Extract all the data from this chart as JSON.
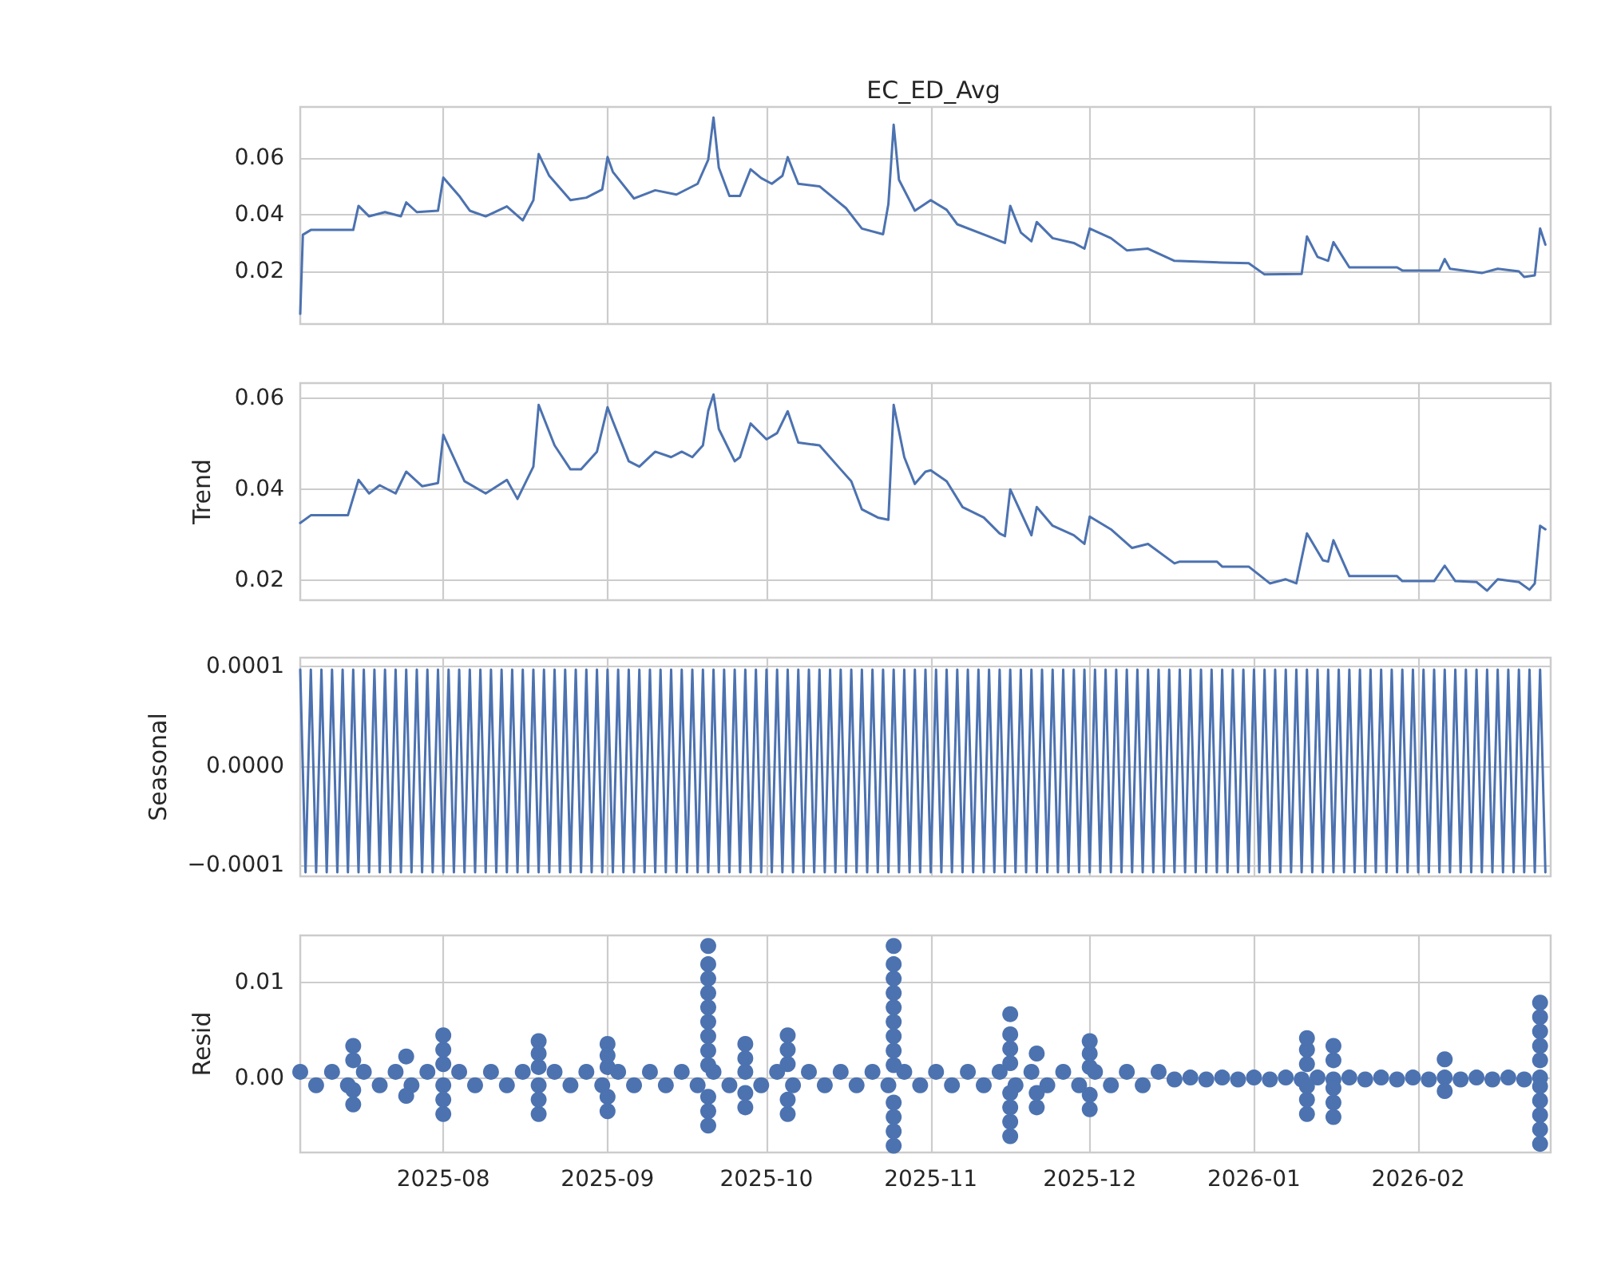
{
  "chart_data": [
    {
      "type": "line",
      "title": "EC_ED_Avg",
      "xlim": [
        "2025-07-05",
        "2026-02-26"
      ],
      "xticks": [
        "2025-08",
        "2025-09",
        "2025-10",
        "2025-11",
        "2025-12",
        "2026-01",
        "2026-02"
      ],
      "ylim": [
        0.0014,
        0.078
      ],
      "yticks": [
        0.02,
        0.04,
        0.06
      ],
      "tick_labels": "y",
      "grid": true,
      "marker": "none",
      "line_style": "solid",
      "series": [
        {
          "color": "#4c72b0",
          "x": [
            "2025-07-05",
            "2025-07-05T12:00",
            "2025-07-07",
            "2025-07-15",
            "2025-07-16",
            "2025-07-18",
            "2025-07-21",
            "2025-07-24",
            "2025-07-25",
            "2025-07-27",
            "2025-07-31",
            "2025-08-01",
            "2025-08-04",
            "2025-08-06",
            "2025-08-09",
            "2025-08-13",
            "2025-08-16",
            "2025-08-18",
            "2025-08-19",
            "2025-08-21",
            "2025-08-25",
            "2025-08-28",
            "2025-08-31",
            "2025-09-01",
            "2025-09-02",
            "2025-09-06",
            "2025-09-10",
            "2025-09-14",
            "2025-09-18",
            "2025-09-20",
            "2025-09-21",
            "2025-09-22",
            "2025-09-24",
            "2025-09-26",
            "2025-09-28",
            "2025-09-30",
            "2025-10-02",
            "2025-10-04",
            "2025-10-05",
            "2025-10-07",
            "2025-10-11",
            "2025-10-16",
            "2025-10-19",
            "2025-10-23",
            "2025-10-24",
            "2025-10-25",
            "2025-10-26",
            "2025-10-29",
            "2025-11-01",
            "2025-11-04",
            "2025-11-06",
            "2025-11-12",
            "2025-11-15",
            "2025-11-16",
            "2025-11-18",
            "2025-11-20",
            "2025-11-21",
            "2025-11-24",
            "2025-11-28",
            "2025-11-30",
            "2025-12-01",
            "2025-12-05",
            "2025-12-08",
            "2025-12-12",
            "2025-12-17",
            "2025-12-26",
            "2025-12-31",
            "2026-01-03",
            "2026-01-10",
            "2026-01-11",
            "2026-01-13",
            "2026-01-15",
            "2026-01-16",
            "2026-01-19",
            "2026-01-28",
            "2026-01-29",
            "2026-02-05",
            "2026-02-06",
            "2026-02-07",
            "2026-02-13",
            "2026-02-16",
            "2026-02-20",
            "2026-02-21",
            "2026-02-23",
            "2026-02-24",
            "2026-02-25"
          ],
          "values": [
            0.005,
            0.0329,
            0.0346,
            0.0346,
            0.0431,
            0.0394,
            0.0409,
            0.0394,
            0.0443,
            0.0409,
            0.0414,
            0.0531,
            0.0466,
            0.0414,
            0.0394,
            0.0429,
            0.038,
            0.0451,
            0.0614,
            0.0537,
            0.0451,
            0.046,
            0.0489,
            0.0603,
            0.0551,
            0.0457,
            0.0486,
            0.0471,
            0.0509,
            0.0594,
            0.0743,
            0.0566,
            0.0466,
            0.0466,
            0.056,
            0.0529,
            0.0509,
            0.0537,
            0.0603,
            0.0509,
            0.05,
            0.0423,
            0.0351,
            0.0331,
            0.0437,
            0.0717,
            0.0523,
            0.0414,
            0.0451,
            0.0417,
            0.0366,
            0.0323,
            0.03,
            0.0431,
            0.0337,
            0.0306,
            0.0374,
            0.0317,
            0.03,
            0.028,
            0.0351,
            0.0317,
            0.0274,
            0.028,
            0.0237,
            0.0231,
            0.0229,
            0.0189,
            0.0191,
            0.0323,
            0.0251,
            0.0237,
            0.0303,
            0.0214,
            0.0214,
            0.0203,
            0.0203,
            0.0243,
            0.0209,
            0.0194,
            0.0209,
            0.02,
            0.018,
            0.0186,
            0.0351,
            0.0294
          ]
        }
      ]
    },
    {
      "type": "line",
      "ylabel": "Trend",
      "xlim": [
        "2025-07-05",
        "2026-02-26"
      ],
      "xticks": [
        "2025-08",
        "2025-09",
        "2025-10",
        "2025-11",
        "2025-12",
        "2026-01",
        "2026-02"
      ],
      "ylim": [
        0.0156,
        0.0634
      ],
      "yticks": [
        0.02,
        0.04,
        0.06
      ],
      "tick_labels": "y",
      "grid": true,
      "marker": "none",
      "line_style": "solid",
      "series": [
        {
          "color": "#4c72b0",
          "x": [
            "2025-07-05",
            "2025-07-07",
            "2025-07-14",
            "2025-07-16",
            "2025-07-18",
            "2025-07-20",
            "2025-07-23",
            "2025-07-25",
            "2025-07-28",
            "2025-07-31",
            "2025-08-01",
            "2025-08-05",
            "2025-08-09",
            "2025-08-13",
            "2025-08-15",
            "2025-08-18",
            "2025-08-19",
            "2025-08-22",
            "2025-08-25",
            "2025-08-27",
            "2025-08-30",
            "2025-09-01",
            "2025-09-02",
            "2025-09-05",
            "2025-09-07",
            "2025-09-10",
            "2025-09-13",
            "2025-09-15",
            "2025-09-17",
            "2025-09-19",
            "2025-09-20",
            "2025-09-21",
            "2025-09-22",
            "2025-09-25",
            "2025-09-26",
            "2025-09-28",
            "2025-10-01",
            "2025-10-03",
            "2025-10-05",
            "2025-10-07",
            "2025-10-11",
            "2025-10-15",
            "2025-10-17",
            "2025-10-19",
            "2025-10-22",
            "2025-10-24",
            "2025-10-25",
            "2025-10-27",
            "2025-10-29",
            "2025-10-31",
            "2025-11-01",
            "2025-11-04",
            "2025-11-07",
            "2025-11-11",
            "2025-11-14",
            "2025-11-15",
            "2025-11-16",
            "2025-11-20",
            "2025-11-21",
            "2025-11-24",
            "2025-11-28",
            "2025-11-30",
            "2025-12-01",
            "2025-12-05",
            "2025-12-09",
            "2025-12-12",
            "2025-12-17",
            "2025-12-18",
            "2025-12-25",
            "2025-12-26",
            "2025-12-31",
            "2026-01-04",
            "2026-01-07",
            "2026-01-09",
            "2026-01-11",
            "2026-01-14",
            "2026-01-15",
            "2026-01-16",
            "2026-01-19",
            "2026-01-28",
            "2026-01-29",
            "2026-02-04",
            "2026-02-06",
            "2026-02-08",
            "2026-02-12",
            "2026-02-14",
            "2026-02-16",
            "2026-02-20",
            "2026-02-22",
            "2026-02-23",
            "2026-02-24",
            "2026-02-25"
          ],
          "values": [
            0.0326,
            0.0343,
            0.0343,
            0.0421,
            0.0391,
            0.0409,
            0.0391,
            0.0439,
            0.0407,
            0.0414,
            0.052,
            0.0418,
            0.0391,
            0.0421,
            0.0379,
            0.045,
            0.0586,
            0.0497,
            0.0444,
            0.0444,
            0.0483,
            0.0581,
            0.055,
            0.0462,
            0.045,
            0.0483,
            0.0471,
            0.0483,
            0.0471,
            0.0497,
            0.0573,
            0.0609,
            0.0533,
            0.0462,
            0.0471,
            0.0545,
            0.051,
            0.0524,
            0.0572,
            0.0503,
            0.0497,
            0.0444,
            0.0418,
            0.0356,
            0.0338,
            0.0333,
            0.0586,
            0.0471,
            0.0412,
            0.0439,
            0.0442,
            0.0418,
            0.0361,
            0.0338,
            0.0303,
            0.0297,
            0.04,
            0.0299,
            0.0361,
            0.032,
            0.0299,
            0.028,
            0.034,
            0.0312,
            0.0271,
            0.028,
            0.0237,
            0.0241,
            0.0241,
            0.023,
            0.023,
            0.0193,
            0.0202,
            0.0193,
            0.0303,
            0.0244,
            0.0241,
            0.0288,
            0.0209,
            0.0209,
            0.0198,
            0.0198,
            0.0232,
            0.0198,
            0.0196,
            0.0177,
            0.0202,
            0.0196,
            0.0179,
            0.0193,
            0.032,
            0.0312
          ]
        }
      ]
    },
    {
      "type": "line",
      "ylabel": "Seasonal",
      "xlim": [
        "2025-07-05",
        "2026-02-26"
      ],
      "xticks": [
        "2025-08",
        "2025-09",
        "2025-10",
        "2025-11",
        "2025-12",
        "2026-01",
        "2026-02"
      ],
      "ylim": [
        -0.000111,
        0.000109
      ],
      "yticks": [
        {
          "value": -0.0001,
          "label": "−0.0001"
        },
        {
          "value": 0,
          "label": "0.0000"
        },
        {
          "value": 0.0001,
          "label": "0.0001"
        }
      ],
      "tick_labels": "y",
      "grid": true,
      "marker": "none",
      "line_style": "solid",
      "series": [
        {
          "color": "#4c72b0",
          "x": [
            "2025-07-05",
            "2025-07-06",
            "2025-07-07",
            "2025-07-08",
            "2025-07-09",
            "2025-07-10",
            "2025-07-11",
            "2025-07-12",
            "2025-07-13",
            "2025-07-14",
            "2025-07-15",
            "2025-07-16",
            "2025-07-17",
            "2025-07-18",
            "2025-07-19",
            "2025-07-20",
            "2025-07-21",
            "2025-07-22",
            "2025-07-23",
            "2025-07-24",
            "2025-07-25",
            "2025-07-26",
            "2025-07-27",
            "2025-07-28",
            "2025-07-29",
            "2025-07-30",
            "2025-07-31",
            "2025-08-01",
            "2025-08-02",
            "2025-08-03",
            "2025-08-04",
            "2025-08-05",
            "2025-08-06",
            "2025-08-07",
            "2025-08-08",
            "2025-08-09",
            "2025-08-10",
            "2025-08-11",
            "2025-08-12",
            "2025-08-13",
            "2025-08-14",
            "2025-08-15",
            "2025-08-16",
            "2025-08-17",
            "2025-08-18",
            "2025-08-19",
            "2025-08-20",
            "2025-08-21",
            "2025-08-22",
            "2025-08-23",
            "2025-08-24",
            "2025-08-25",
            "2025-08-26",
            "2025-08-27",
            "2025-08-28",
            "2025-08-29",
            "2025-08-30",
            "2025-08-31",
            "2025-09-01",
            "2025-09-02",
            "2025-09-03",
            "2025-09-04",
            "2025-09-05",
            "2025-09-06",
            "2025-09-07",
            "2025-09-08",
            "2025-09-09",
            "2025-09-10",
            "2025-09-11",
            "2025-09-12",
            "2025-09-13",
            "2025-09-14",
            "2025-09-15",
            "2025-09-16",
            "2025-09-17",
            "2025-09-18",
            "2025-09-19",
            "2025-09-20",
            "2025-09-21",
            "2025-09-22",
            "2025-09-23",
            "2025-09-24",
            "2025-09-25",
            "2025-09-26",
            "2025-09-27",
            "2025-09-28",
            "2025-09-29",
            "2025-09-30",
            "2025-10-01",
            "2025-10-02",
            "2025-10-03",
            "2025-10-04",
            "2025-10-05",
            "2025-10-06",
            "2025-10-07",
            "2025-10-08",
            "2025-10-09",
            "2025-10-10",
            "2025-10-11",
            "2025-10-12",
            "2025-10-13",
            "2025-10-14",
            "2025-10-15",
            "2025-10-16",
            "2025-10-17",
            "2025-10-18",
            "2025-10-19",
            "2025-10-20",
            "2025-10-21",
            "2025-10-22",
            "2025-10-23",
            "2025-10-24",
            "2025-10-25",
            "2025-10-26",
            "2025-10-27",
            "2025-10-28",
            "2025-10-29",
            "2025-10-30",
            "2025-10-31",
            "2025-11-01",
            "2025-11-02",
            "2025-11-03",
            "2025-11-04",
            "2025-11-05",
            "2025-11-06",
            "2025-11-07",
            "2025-11-08",
            "2025-11-09",
            "2025-11-10",
            "2025-11-11",
            "2025-11-12",
            "2025-11-13",
            "2025-11-14",
            "2025-11-15",
            "2025-11-16",
            "2025-11-17",
            "2025-11-18",
            "2025-11-19",
            "2025-11-20",
            "2025-11-21",
            "2025-11-22",
            "2025-11-23",
            "2025-11-24",
            "2025-11-25",
            "2025-11-26",
            "2025-11-27",
            "2025-11-28",
            "2025-11-29",
            "2025-11-30",
            "2025-12-01",
            "2025-12-02",
            "2025-12-03",
            "2025-12-04",
            "2025-12-05",
            "2025-12-06",
            "2025-12-07",
            "2025-12-08",
            "2025-12-09",
            "2025-12-10",
            "2025-12-11",
            "2025-12-12",
            "2025-12-13",
            "2025-12-14",
            "2025-12-15",
            "2025-12-16",
            "2025-12-17",
            "2025-12-18",
            "2025-12-19",
            "2025-12-20",
            "2025-12-21",
            "2025-12-22",
            "2025-12-23",
            "2025-12-24",
            "2025-12-25",
            "2025-12-26",
            "2025-12-27",
            "2025-12-28",
            "2025-12-29",
            "2025-12-30",
            "2025-12-31",
            "2026-01-01",
            "2026-01-02",
            "2026-01-03",
            "2026-01-04",
            "2026-01-05",
            "2026-01-06",
            "2026-01-07",
            "2026-01-08",
            "2026-01-09",
            "2026-01-10",
            "2026-01-11",
            "2026-01-12",
            "2026-01-13",
            "2026-01-14",
            "2026-01-15",
            "2026-01-16",
            "2026-01-17",
            "2026-01-18",
            "2026-01-19",
            "2026-01-20",
            "2026-01-21",
            "2026-01-22",
            "2026-01-23",
            "2026-01-24",
            "2026-01-25",
            "2026-01-26",
            "2026-01-27",
            "2026-01-28",
            "2026-01-29",
            "2026-01-30",
            "2026-01-31",
            "2026-02-01",
            "2026-02-02",
            "2026-02-03",
            "2026-02-04",
            "2026-02-05",
            "2026-02-06",
            "2026-02-07",
            "2026-02-08",
            "2026-02-09",
            "2026-02-10",
            "2026-02-11",
            "2026-02-12",
            "2026-02-13",
            "2026-02-14",
            "2026-02-15",
            "2026-02-16",
            "2026-02-17",
            "2026-02-18",
            "2026-02-19",
            "2026-02-20",
            "2026-02-21",
            "2026-02-22",
            "2026-02-23",
            "2026-02-24",
            "2026-02-25"
          ],
          "values": [
            9.7e-05,
            -0.000107,
            9.7e-05,
            -0.000107,
            9.7e-05,
            -0.000107,
            9.7e-05,
            -0.000107,
            9.7e-05,
            -0.000107,
            9.7e-05,
            -0.000107,
            9.7e-05,
            -0.000107,
            9.7e-05,
            -0.000107,
            9.7e-05,
            -0.000107,
            9.7e-05,
            -0.000107,
            9.7e-05,
            -0.000107,
            9.7e-05,
            -0.000107,
            9.7e-05,
            -0.000107,
            9.7e-05,
            -0.000107,
            9.7e-05,
            -0.000107,
            9.7e-05,
            -0.000107,
            9.7e-05,
            -0.000107,
            9.7e-05,
            -0.000107,
            9.7e-05,
            -0.000107,
            9.7e-05,
            -0.000107,
            9.7e-05,
            -0.000107,
            9.7e-05,
            -0.000107,
            9.7e-05,
            -0.000107,
            9.7e-05,
            -0.000107,
            9.7e-05,
            -0.000107,
            9.7e-05,
            -0.000107,
            9.7e-05,
            -0.000107,
            9.7e-05,
            -0.000107,
            9.7e-05,
            -0.000107,
            9.7e-05,
            -0.000107,
            9.7e-05,
            -0.000107,
            9.7e-05,
            -0.000107,
            9.7e-05,
            -0.000107,
            9.7e-05,
            -0.000107,
            9.7e-05,
            -0.000107,
            9.7e-05,
            -0.000107,
            9.7e-05,
            -0.000107,
            9.7e-05,
            -0.000107,
            9.7e-05,
            -0.000107,
            9.7e-05,
            -0.000107,
            9.7e-05,
            -0.000107,
            9.7e-05,
            -0.000107,
            9.7e-05,
            -0.000107,
            9.7e-05,
            -0.000107,
            9.7e-05,
            -0.000107,
            9.7e-05,
            -0.000107,
            9.7e-05,
            -0.000107,
            9.7e-05,
            -0.000107,
            9.7e-05,
            -0.000107,
            9.7e-05,
            -0.000107,
            9.7e-05,
            -0.000107,
            9.7e-05,
            -0.000107,
            9.7e-05,
            -0.000107,
            9.7e-05,
            -0.000107,
            9.7e-05,
            -0.000107,
            9.7e-05,
            -0.000107,
            9.7e-05,
            -0.000107,
            9.7e-05,
            -0.000107,
            9.7e-05,
            -0.000107,
            9.7e-05,
            -0.000107,
            9.7e-05,
            -0.000107,
            9.7e-05,
            -0.000107,
            9.7e-05,
            -0.000107,
            9.7e-05,
            -0.000107,
            9.7e-05,
            -0.000107,
            9.7e-05,
            -0.000107,
            9.7e-05,
            -0.000107,
            9.7e-05,
            -0.000107,
            9.7e-05,
            -0.000107,
            9.7e-05,
            -0.000107,
            9.7e-05,
            -0.000107,
            9.7e-05,
            -0.000107,
            9.7e-05,
            -0.000107,
            9.7e-05,
            -0.000107,
            9.7e-05,
            -0.000107,
            9.7e-05,
            -0.000107,
            9.7e-05,
            -0.000107,
            9.7e-05,
            -0.000107,
            9.7e-05,
            -0.000107,
            9.7e-05,
            -0.000107,
            9.7e-05,
            -0.000107,
            9.7e-05,
            -0.000107,
            9.7e-05,
            -0.000107,
            9.7e-05,
            -0.000107,
            9.7e-05,
            -0.000107,
            9.7e-05,
            -0.000107,
            9.7e-05,
            -0.000107,
            9.7e-05,
            -0.000107,
            9.7e-05,
            -0.000107,
            9.7e-05,
            -0.000107,
            9.7e-05,
            -0.000107,
            9.7e-05,
            -0.000107,
            9.7e-05,
            -0.000107,
            9.7e-05,
            -0.000107,
            9.7e-05,
            -0.000107,
            9.7e-05,
            -0.000107,
            9.7e-05,
            -0.000107,
            9.7e-05,
            -0.000107,
            9.7e-05,
            -0.000107,
            9.7e-05,
            -0.000107,
            9.7e-05,
            -0.000107,
            9.7e-05,
            -0.000107,
            9.7e-05,
            -0.000107,
            9.7e-05,
            -0.000107,
            9.7e-05,
            -0.000107,
            9.7e-05,
            -0.000107,
            9.7e-05,
            -0.000107,
            9.7e-05,
            -0.000107,
            9.7e-05,
            -0.000107,
            9.7e-05,
            -0.000107,
            9.7e-05,
            -0.000107,
            9.7e-05,
            -0.000107,
            9.7e-05,
            -0.000107,
            9.7e-05,
            -0.000107,
            9.7e-05,
            -0.000107,
            9.7e-05,
            -0.000107,
            9.7e-05,
            -0.000107,
            9.7e-05,
            -0.000107
          ]
        }
      ]
    },
    {
      "type": "scatter",
      "ylabel": "Resid",
      "xlim": [
        "2025-07-05",
        "2026-02-26"
      ],
      "xticks": [
        "2025-08",
        "2025-09",
        "2025-10",
        "2025-11",
        "2025-12",
        "2026-01",
        "2026-02"
      ],
      "ylim": [
        -0.0077,
        0.0149
      ],
      "yticks": [
        {
          "value": 0,
          "label": "0.00"
        },
        0.01
      ],
      "grid": true,
      "marker": "circle",
      "series": [
        {
          "color": "#4c72b0",
          "x": [
            "2025-07-05",
            "2025-07-08",
            "2025-07-11",
            "2025-07-14",
            "2025-07-17",
            "2025-07-20",
            "2025-07-23",
            "2025-07-26",
            "2025-07-29",
            "2025-08-01",
            "2025-08-04",
            "2025-08-07",
            "2025-08-10",
            "2025-08-13",
            "2025-08-16",
            "2025-08-19",
            "2025-08-22",
            "2025-08-25",
            "2025-08-28",
            "2025-08-31",
            "2025-09-03",
            "2025-09-06",
            "2025-09-09",
            "2025-09-12",
            "2025-09-15",
            "2025-09-18",
            "2025-09-21",
            "2025-09-24",
            "2025-09-27",
            "2025-09-30",
            "2025-10-03",
            "2025-10-06",
            "2025-10-09",
            "2025-10-12",
            "2025-10-15",
            "2025-10-18",
            "2025-10-21",
            "2025-10-24",
            "2025-10-27",
            "2025-10-30",
            "2025-11-02",
            "2025-11-05",
            "2025-11-08",
            "2025-11-11",
            "2025-11-14",
            "2025-11-17",
            "2025-11-20",
            "2025-11-23",
            "2025-11-26",
            "2025-11-29",
            "2025-12-02",
            "2025-12-05",
            "2025-12-08",
            "2025-12-11",
            "2025-12-14",
            "2025-12-17",
            "2025-12-20",
            "2025-12-23",
            "2025-12-26",
            "2025-12-29",
            "2026-01-01",
            "2026-01-04",
            "2026-01-07",
            "2026-01-10",
            "2026-01-13",
            "2026-01-16",
            "2026-01-19",
            "2026-01-22",
            "2026-01-25",
            "2026-01-28",
            "2026-01-31",
            "2026-02-03",
            "2026-02-06",
            "2026-02-09",
            "2026-02-12",
            "2026-02-15",
            "2026-02-18",
            "2026-02-21",
            "2026-02-24"
          ],
          "values": [
            0.0007,
            -0.0007,
            0.0007,
            -0.0007,
            0.0007,
            -0.0007,
            0.0007,
            -0.0007,
            0.0007,
            -0.0007,
            0.0007,
            -0.0007,
            0.0007,
            -0.0007,
            0.0007,
            -0.0007,
            0.0007,
            -0.0007,
            0.0007,
            -0.0007,
            0.0007,
            -0.0007,
            0.0007,
            -0.0007,
            0.0007,
            -0.0007,
            0.0007,
            -0.0007,
            0.0007,
            -0.0007,
            0.0007,
            -0.0007,
            0.0007,
            -0.0007,
            0.0007,
            -0.0007,
            0.0007,
            -0.0007,
            0.0007,
            -0.0007,
            0.0007,
            -0.0007,
            0.0007,
            -0.0007,
            0.0007,
            -0.0007,
            0.0007,
            -0.0007,
            0.0007,
            -0.0007,
            0.0007,
            -0.0007,
            0.0007,
            -0.0007,
            0.0007,
            -0.0001,
            0.0001,
            -0.0001,
            0.0001,
            -0.0001,
            0.0001,
            -0.0001,
            0.0001,
            -0.0001,
            0.0001,
            -0.0001,
            0.0001,
            -0.0001,
            0.0001,
            -0.0001,
            0.0001,
            -0.0001,
            0.0001,
            -0.0001,
            0.0001,
            -0.0001,
            0.0001,
            -0.0001,
            0.0001
          ]
        },
        {
          "color": "#4c72b0",
          "x": [
            "2025-07-15",
            "2025-07-15",
            "2025-07-15",
            "2025-07-15"
          ],
          "values": [
            -0.0027,
            -0.0012,
            0.0019,
            0.0034
          ]
        },
        {
          "color": "#4c72b0",
          "x": [
            "2025-07-25",
            "2025-07-25"
          ],
          "values": [
            -0.0018,
            0.0023
          ]
        },
        {
          "color": "#4c72b0",
          "x": [
            "2025-08-01",
            "2025-08-01",
            "2025-08-01",
            "2025-08-01",
            "2025-08-01"
          ],
          "values": [
            -0.0037,
            -0.0022,
            0.0015,
            0.003,
            0.0045
          ]
        },
        {
          "color": "#4c72b0",
          "x": [
            "2025-08-19",
            "2025-08-19",
            "2025-08-19",
            "2025-08-19",
            "2025-08-19"
          ],
          "values": [
            -0.0037,
            -0.0022,
            0.0012,
            0.0026,
            0.0039
          ]
        },
        {
          "color": "#4c72b0",
          "x": [
            "2025-09-01",
            "2025-09-01",
            "2025-09-01",
            "2025-09-01",
            "2025-09-01"
          ],
          "values": [
            -0.0034,
            -0.0019,
            0.0012,
            0.0024,
            0.0036
          ]
        },
        {
          "color": "#4c72b0",
          "x": [
            "2025-09-20",
            "2025-09-20",
            "2025-09-20",
            "2025-09-20",
            "2025-09-20",
            "2025-09-20",
            "2025-09-20",
            "2025-09-20",
            "2025-09-20",
            "2025-09-20",
            "2025-09-20",
            "2025-09-20"
          ],
          "values": [
            -0.0049,
            -0.0034,
            -0.0019,
            0.0014,
            0.0029,
            0.0044,
            0.0059,
            0.0074,
            0.0089,
            0.0104,
            0.0119,
            0.0138
          ]
        },
        {
          "color": "#4c72b0",
          "x": [
            "2025-09-27",
            "2025-09-27",
            "2025-09-27",
            "2025-09-27"
          ],
          "values": [
            -0.003,
            -0.0015,
            0.0021,
            0.0036
          ]
        },
        {
          "color": "#4c72b0",
          "x": [
            "2025-10-05",
            "2025-10-05",
            "2025-10-05",
            "2025-10-05",
            "2025-10-05"
          ],
          "values": [
            -0.0037,
            -0.0022,
            0.0015,
            0.003,
            0.0045
          ]
        },
        {
          "color": "#4c72b0",
          "x": [
            "2025-10-25",
            "2025-10-25",
            "2025-10-25",
            "2025-10-25",
            "2025-10-25",
            "2025-10-25",
            "2025-10-25",
            "2025-10-25",
            "2025-10-25",
            "2025-10-25",
            "2025-10-25",
            "2025-10-25",
            "2025-10-25"
          ],
          "values": [
            -0.007,
            -0.0055,
            -0.004,
            -0.0025,
            0.0014,
            0.0029,
            0.0044,
            0.0059,
            0.0074,
            0.0089,
            0.0104,
            0.0119,
            0.0138
          ]
        },
        {
          "color": "#4c72b0",
          "x": [
            "2025-11-16",
            "2025-11-16",
            "2025-11-16",
            "2025-11-16",
            "2025-11-16",
            "2025-11-16",
            "2025-11-16",
            "2025-11-16"
          ],
          "values": [
            -0.006,
            -0.0045,
            -0.003,
            -0.0015,
            0.0016,
            0.0031,
            0.0046,
            0.0067
          ]
        },
        {
          "color": "#4c72b0",
          "x": [
            "2025-11-21",
            "2025-11-21",
            "2025-11-21"
          ],
          "values": [
            -0.003,
            -0.0015,
            0.0026
          ]
        },
        {
          "color": "#4c72b0",
          "x": [
            "2025-12-01",
            "2025-12-01",
            "2025-12-01",
            "2025-12-01",
            "2025-12-01"
          ],
          "values": [
            -0.0032,
            -0.0017,
            0.0012,
            0.0026,
            0.0039
          ]
        },
        {
          "color": "#4c72b0",
          "x": [
            "2026-01-11",
            "2026-01-11",
            "2026-01-11",
            "2026-01-11",
            "2026-01-11",
            "2026-01-11"
          ],
          "values": [
            -0.0037,
            -0.0022,
            -0.0008,
            0.0015,
            0.003,
            0.0042
          ]
        },
        {
          "color": "#4c72b0",
          "x": [
            "2026-01-16",
            "2026-01-16",
            "2026-01-16",
            "2026-01-16",
            "2026-01-16"
          ],
          "values": [
            -0.004,
            -0.0025,
            -0.001,
            0.0019,
            0.0034
          ]
        },
        {
          "color": "#4c72b0",
          "x": [
            "2026-02-06",
            "2026-02-06"
          ],
          "values": [
            -0.0013,
            0.002
          ]
        },
        {
          "color": "#4c72b0",
          "x": [
            "2026-02-24",
            "2026-02-24",
            "2026-02-24",
            "2026-02-24",
            "2026-02-24",
            "2026-02-24",
            "2026-02-24",
            "2026-02-24",
            "2026-02-24",
            "2026-02-24"
          ],
          "values": [
            -0.0068,
            -0.0053,
            -0.0038,
            -0.0023,
            -0.0008,
            0.0019,
            0.0034,
            0.0049,
            0.0064,
            0.0079
          ]
        }
      ]
    }
  ]
}
